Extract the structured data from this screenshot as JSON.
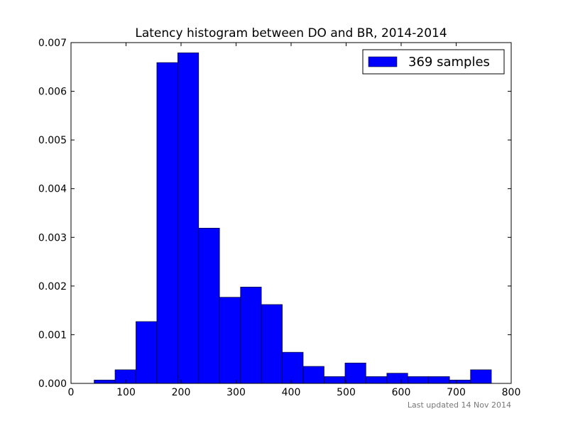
{
  "chart_data": {
    "type": "bar",
    "title": "Latency histogram between DO and BR, 2014-2014",
    "xlabel": "",
    "ylabel": "",
    "xlim": [
      0,
      800
    ],
    "ylim": [
      0,
      0.007
    ],
    "bin_edges": [
      42,
      80,
      118,
      156,
      194,
      232,
      270,
      308,
      346,
      384,
      422,
      460,
      498,
      536,
      574,
      612,
      650,
      688,
      726,
      764
    ],
    "values": [
      7e-05,
      0.00028,
      0.00127,
      0.00659,
      0.00679,
      0.00319,
      0.00177,
      0.00198,
      0.00162,
      0.00064,
      0.00035,
      0.00014,
      0.00042,
      0.00014,
      0.00021,
      0.00014,
      0.00014,
      7e-05,
      0.00028
    ],
    "x_ticks": [
      "0",
      "100",
      "200",
      "300",
      "400",
      "500",
      "600",
      "700",
      "800"
    ],
    "y_ticks": [
      "0.000",
      "0.001",
      "0.002",
      "0.003",
      "0.004",
      "0.005",
      "0.006",
      "0.007"
    ],
    "series": [
      {
        "name": "369 samples",
        "color": "#0000ff"
      }
    ],
    "legend": "top-right",
    "grid": false,
    "footer": "Last updated 14 Nov 2014"
  }
}
